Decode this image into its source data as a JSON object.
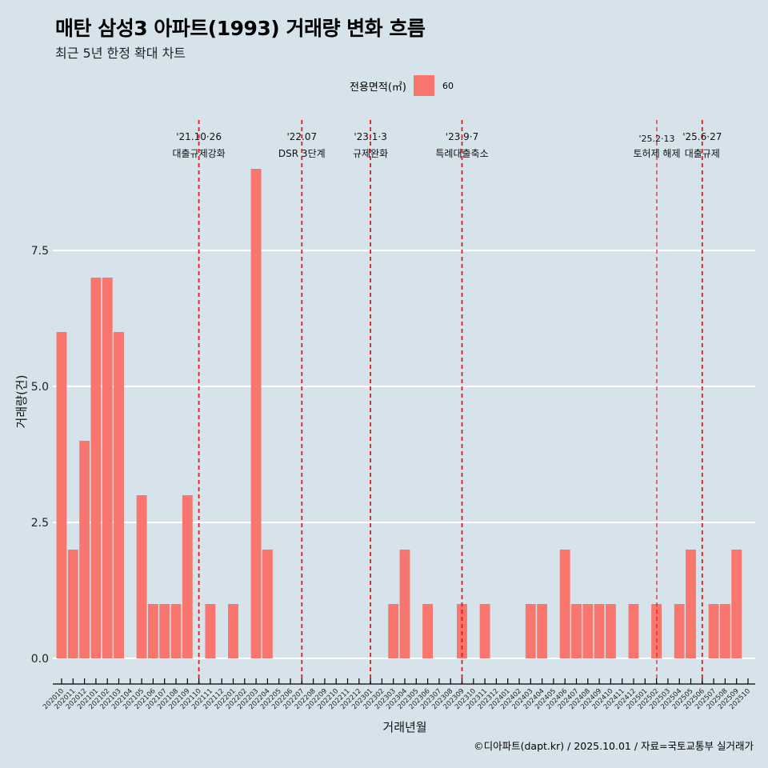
{
  "header": {
    "title": "매탄 삼성3 아파트(1993) 거래량 변화 흐름",
    "subtitle": "최근 5년 한정 확대 차트"
  },
  "legend": {
    "title": "전용면적(㎡)",
    "items": [
      {
        "label": "60",
        "color": "#f8766d"
      }
    ]
  },
  "caption": "©디아파트(dapt.kr) / 2025.10.01 / 자료=국토교통부 실거래가",
  "colors": {
    "background": "#d6e3ea",
    "bar": "#f8766d",
    "grid": "#ffffff",
    "event_line": "#e41a1c"
  },
  "chart_data": {
    "type": "bar",
    "xlabel": "거래년월",
    "ylabel": "거래량(건)",
    "ylim": [
      -0.45,
      9.6
    ],
    "yticks": [
      0.0,
      2.5,
      5.0,
      7.5
    ],
    "ytick_labels": [
      "0.0",
      "2.5",
      "5.0",
      "7.5"
    ],
    "grid": true,
    "legend_position": "top",
    "categories": [
      "202010",
      "202011",
      "202012",
      "202101",
      "202102",
      "202103",
      "202104",
      "202105",
      "202106",
      "202107",
      "202108",
      "202109",
      "202110",
      "202111",
      "202112",
      "202201",
      "202202",
      "202203",
      "202204",
      "202205",
      "202206",
      "202207",
      "202208",
      "202209",
      "202210",
      "202211",
      "202212",
      "202301",
      "202302",
      "202303",
      "202304",
      "202305",
      "202306",
      "202307",
      "202308",
      "202309",
      "202310",
      "202311",
      "202312",
      "202401",
      "202402",
      "202403",
      "202404",
      "202405",
      "202406",
      "202407",
      "202408",
      "202409",
      "202410",
      "202411",
      "202412",
      "202501",
      "202502",
      "202503",
      "202504",
      "202505",
      "202506",
      "202507",
      "202508",
      "202509",
      "202510"
    ],
    "series": [
      {
        "name": "60",
        "values": [
          6,
          2,
          4,
          7,
          7,
          6,
          0,
          3,
          1,
          1,
          1,
          3,
          0,
          1,
          0,
          1,
          0,
          9,
          2,
          0,
          0,
          0,
          0,
          0,
          0,
          0,
          0,
          0,
          0,
          1,
          2,
          0,
          1,
          0,
          0,
          1,
          0,
          1,
          0,
          0,
          0,
          1,
          1,
          0,
          2,
          1,
          1,
          1,
          1,
          0,
          1,
          0,
          1,
          0,
          1,
          2,
          0,
          1,
          1,
          2,
          0
        ]
      }
    ],
    "annotations": [
      {
        "at": "202110",
        "offset": 0.0,
        "date": "'21.10·26",
        "label": "대출규제강화",
        "style": "bold"
      },
      {
        "at": "202207",
        "offset": 0.0,
        "date": "'22.07",
        "label": "DSR 3단계",
        "style": "bold"
      },
      {
        "at": "202301",
        "offset": 0.0,
        "date": "'23.1·3",
        "label": "규제완화",
        "style": "bold"
      },
      {
        "at": "202309",
        "offset": 0.0,
        "date": "'23.9·7",
        "label": "특례대출축소",
        "style": "bold"
      },
      {
        "at": "202502",
        "offset": 0.4,
        "date": "'25.2·13",
        "label": "토허제 해제",
        "style": "thin"
      },
      {
        "at": "202506",
        "offset": 0.0,
        "date": "'25.6·27",
        "label": "대출규제",
        "style": "bold"
      }
    ]
  }
}
